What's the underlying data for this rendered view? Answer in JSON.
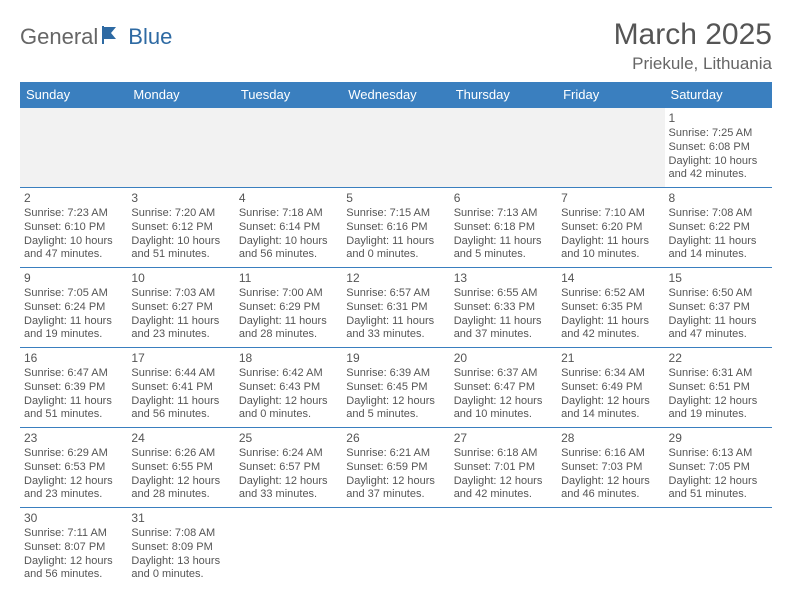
{
  "brand": {
    "part1": "General",
    "part2": "Blue",
    "color1": "#7a7a7a",
    "color2": "#2e6aa3",
    "flag_color": "#2e6aa3"
  },
  "header": {
    "title": "March 2025",
    "location": "Priekule, Lithuania"
  },
  "theme": {
    "header_bg": "#3a7fbf",
    "header_text": "#ffffff",
    "cell_border": "#3a7fbf",
    "blank_bg": "#f2f2f2",
    "text_color": "#555555"
  },
  "weekdays": [
    "Sunday",
    "Monday",
    "Tuesday",
    "Wednesday",
    "Thursday",
    "Friday",
    "Saturday"
  ],
  "weeks": [
    [
      null,
      null,
      null,
      null,
      null,
      null,
      {
        "d": "1",
        "sr": "7:25 AM",
        "ss": "6:08 PM",
        "dl": "10 hours and 42 minutes."
      }
    ],
    [
      {
        "d": "2",
        "sr": "7:23 AM",
        "ss": "6:10 PM",
        "dl": "10 hours and 47 minutes."
      },
      {
        "d": "3",
        "sr": "7:20 AM",
        "ss": "6:12 PM",
        "dl": "10 hours and 51 minutes."
      },
      {
        "d": "4",
        "sr": "7:18 AM",
        "ss": "6:14 PM",
        "dl": "10 hours and 56 minutes."
      },
      {
        "d": "5",
        "sr": "7:15 AM",
        "ss": "6:16 PM",
        "dl": "11 hours and 0 minutes."
      },
      {
        "d": "6",
        "sr": "7:13 AM",
        "ss": "6:18 PM",
        "dl": "11 hours and 5 minutes."
      },
      {
        "d": "7",
        "sr": "7:10 AM",
        "ss": "6:20 PM",
        "dl": "11 hours and 10 minutes."
      },
      {
        "d": "8",
        "sr": "7:08 AM",
        "ss": "6:22 PM",
        "dl": "11 hours and 14 minutes."
      }
    ],
    [
      {
        "d": "9",
        "sr": "7:05 AM",
        "ss": "6:24 PM",
        "dl": "11 hours and 19 minutes."
      },
      {
        "d": "10",
        "sr": "7:03 AM",
        "ss": "6:27 PM",
        "dl": "11 hours and 23 minutes."
      },
      {
        "d": "11",
        "sr": "7:00 AM",
        "ss": "6:29 PM",
        "dl": "11 hours and 28 minutes."
      },
      {
        "d": "12",
        "sr": "6:57 AM",
        "ss": "6:31 PM",
        "dl": "11 hours and 33 minutes."
      },
      {
        "d": "13",
        "sr": "6:55 AM",
        "ss": "6:33 PM",
        "dl": "11 hours and 37 minutes."
      },
      {
        "d": "14",
        "sr": "6:52 AM",
        "ss": "6:35 PM",
        "dl": "11 hours and 42 minutes."
      },
      {
        "d": "15",
        "sr": "6:50 AM",
        "ss": "6:37 PM",
        "dl": "11 hours and 47 minutes."
      }
    ],
    [
      {
        "d": "16",
        "sr": "6:47 AM",
        "ss": "6:39 PM",
        "dl": "11 hours and 51 minutes."
      },
      {
        "d": "17",
        "sr": "6:44 AM",
        "ss": "6:41 PM",
        "dl": "11 hours and 56 minutes."
      },
      {
        "d": "18",
        "sr": "6:42 AM",
        "ss": "6:43 PM",
        "dl": "12 hours and 0 minutes."
      },
      {
        "d": "19",
        "sr": "6:39 AM",
        "ss": "6:45 PM",
        "dl": "12 hours and 5 minutes."
      },
      {
        "d": "20",
        "sr": "6:37 AM",
        "ss": "6:47 PM",
        "dl": "12 hours and 10 minutes."
      },
      {
        "d": "21",
        "sr": "6:34 AM",
        "ss": "6:49 PM",
        "dl": "12 hours and 14 minutes."
      },
      {
        "d": "22",
        "sr": "6:31 AM",
        "ss": "6:51 PM",
        "dl": "12 hours and 19 minutes."
      }
    ],
    [
      {
        "d": "23",
        "sr": "6:29 AM",
        "ss": "6:53 PM",
        "dl": "12 hours and 23 minutes."
      },
      {
        "d": "24",
        "sr": "6:26 AM",
        "ss": "6:55 PM",
        "dl": "12 hours and 28 minutes."
      },
      {
        "d": "25",
        "sr": "6:24 AM",
        "ss": "6:57 PM",
        "dl": "12 hours and 33 minutes."
      },
      {
        "d": "26",
        "sr": "6:21 AM",
        "ss": "6:59 PM",
        "dl": "12 hours and 37 minutes."
      },
      {
        "d": "27",
        "sr": "6:18 AM",
        "ss": "7:01 PM",
        "dl": "12 hours and 42 minutes."
      },
      {
        "d": "28",
        "sr": "6:16 AM",
        "ss": "7:03 PM",
        "dl": "12 hours and 46 minutes."
      },
      {
        "d": "29",
        "sr": "6:13 AM",
        "ss": "7:05 PM",
        "dl": "12 hours and 51 minutes."
      }
    ],
    [
      {
        "d": "30",
        "sr": "7:11 AM",
        "ss": "8:07 PM",
        "dl": "12 hours and 56 minutes."
      },
      {
        "d": "31",
        "sr": "7:08 AM",
        "ss": "8:09 PM",
        "dl": "13 hours and 0 minutes."
      },
      null,
      null,
      null,
      null,
      null
    ]
  ],
  "labels": {
    "sunrise": "Sunrise: ",
    "sunset": "Sunset: ",
    "daylight": "Daylight: "
  }
}
